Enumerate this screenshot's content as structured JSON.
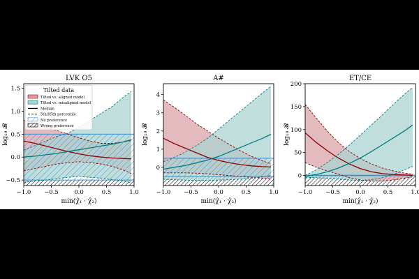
{
  "chart_data": [
    {
      "type": "line",
      "title": "LVK O5",
      "xlabel": "min(χ̂₁ · χ̂₂)",
      "ylabel": "log₁₀ 𝓑",
      "xlim": [
        -1.0,
        1.0
      ],
      "ylim": [
        -0.62,
        1.6
      ],
      "xticks": [
        -1.0,
        -0.5,
        0.0,
        0.5,
        1.0
      ],
      "xtick_labels": [
        "−1.0",
        "−0.5",
        "0.0",
        "0.5",
        "1.0"
      ],
      "yticks": [
        -0.5,
        0.0,
        0.5,
        1.0,
        1.5
      ],
      "ytick_labels": [
        "−0.5",
        "0.0",
        "0.5",
        "1.0",
        "1.5"
      ],
      "no_preference_band": [
        -0.5,
        0.5
      ],
      "wrong_preference_band": [
        -0.62,
        -0.5
      ],
      "x": [
        -1.0,
        -0.8,
        -0.6,
        -0.4,
        -0.2,
        0.0,
        0.2,
        0.4,
        0.6,
        0.8,
        0.95
      ],
      "series": [
        {
          "name": "Tilted vs. aligned model",
          "color": "#8b0000",
          "fill": "#d9a3a8",
          "median": [
            0.35,
            0.3,
            0.24,
            0.18,
            0.12,
            0.07,
            0.03,
            0.0,
            -0.02,
            -0.03,
            -0.04
          ],
          "p5": [
            -0.3,
            -0.25,
            -0.2,
            -0.15,
            -0.12,
            -0.1,
            -0.12,
            -0.15,
            -0.2,
            -0.28,
            -0.36
          ],
          "p95": [
            0.8,
            0.75,
            0.65,
            0.58,
            0.5,
            0.42,
            0.35,
            0.3,
            0.3,
            0.33,
            0.36
          ]
        },
        {
          "name": "Tilted vs. misaligned model",
          "color": "#007c80",
          "fill": "#a9d3d0",
          "median": [
            0.0,
            0.02,
            0.05,
            0.08,
            0.12,
            0.16,
            0.2,
            0.24,
            0.28,
            0.33,
            0.38
          ],
          "p5": [
            -0.55,
            -0.52,
            -0.5,
            -0.47,
            -0.44,
            -0.42,
            -0.44,
            -0.46,
            -0.49,
            -0.52,
            -0.56
          ],
          "p95": [
            0.15,
            0.25,
            0.35,
            0.45,
            0.52,
            0.65,
            0.8,
            0.95,
            1.1,
            1.3,
            1.43
          ]
        }
      ],
      "legend": {
        "position": "upper-left",
        "title": "Tilted data",
        "entries": [
          "Tilted vs. aligned model",
          "Tilted vs. misaligned model",
          "Median",
          "5th/95th percentile",
          "No preference",
          "Wrong preference"
        ]
      }
    },
    {
      "type": "line",
      "title": "A#",
      "xlabel": "min(χ̂₁ · χ̂₂)",
      "ylabel": "log₁₀ 𝓑",
      "xlim": [
        -1.0,
        1.0
      ],
      "ylim": [
        -1.0,
        4.6
      ],
      "xticks": [
        -1.0,
        -0.5,
        0.0,
        0.5,
        1.0
      ],
      "xtick_labels": [
        "−1.0",
        "−0.5",
        "0.0",
        "0.5",
        "1.0"
      ],
      "yticks": [
        0,
        1,
        2,
        3,
        4
      ],
      "ytick_labels": [
        "0",
        "1",
        "2",
        "3",
        "4"
      ],
      "no_preference_band": [
        -0.5,
        0.5
      ],
      "wrong_preference_band": [
        -1.0,
        -0.5
      ],
      "x": [
        -1.0,
        -0.8,
        -0.6,
        -0.4,
        -0.2,
        0.0,
        0.2,
        0.4,
        0.6,
        0.8,
        0.95
      ],
      "series": [
        {
          "name": "Tilted vs. aligned model",
          "color": "#8b0000",
          "fill": "#d9a3a8",
          "median": [
            1.6,
            1.3,
            1.05,
            0.8,
            0.55,
            0.38,
            0.25,
            0.15,
            0.08,
            0.04,
            0.02
          ],
          "p5": [
            -0.3,
            -0.3,
            -0.3,
            -0.32,
            -0.35,
            -0.4,
            -0.45,
            -0.5,
            -0.55,
            -0.6,
            -0.65
          ],
          "p95": [
            3.7,
            3.3,
            2.85,
            2.4,
            2.0,
            1.6,
            1.25,
            0.9,
            0.6,
            0.35,
            0.2
          ]
        },
        {
          "name": "Tilted vs. misaligned model",
          "color": "#007c80",
          "fill": "#a9d3d0",
          "median": [
            -0.1,
            0.0,
            0.1,
            0.25,
            0.4,
            0.6,
            0.85,
            1.1,
            1.35,
            1.6,
            1.82
          ],
          "p5": [
            -0.65,
            -0.68,
            -0.7,
            -0.72,
            -0.72,
            -0.7,
            -0.68,
            -0.65,
            -0.6,
            -0.52,
            -0.45
          ],
          "p95": [
            0.3,
            0.55,
            0.85,
            1.2,
            1.6,
            2.1,
            2.6,
            3.1,
            3.6,
            4.1,
            4.45
          ]
        }
      ]
    },
    {
      "type": "line",
      "title": "ET/CE",
      "xlabel": "min(χ̂₁ · χ̂₂)",
      "ylabel": "log₁₀ 𝓑",
      "xlim": [
        -1.0,
        1.0
      ],
      "ylim": [
        -22,
        200
      ],
      "xticks": [
        -1.0,
        -0.5,
        0.0,
        0.5,
        1.0
      ],
      "xtick_labels": [
        "−1.0",
        "−0.5",
        "0.0",
        "0.5",
        "1.0"
      ],
      "yticks": [
        0,
        50,
        100,
        150,
        200
      ],
      "ytick_labels": [
        "0",
        "50",
        "100",
        "150",
        "200"
      ],
      "no_preference_band": [
        -0.5,
        0.5
      ],
      "wrong_preference_band": [
        -22,
        -0.5
      ],
      "x": [
        -1.0,
        -0.8,
        -0.6,
        -0.4,
        -0.2,
        0.0,
        0.2,
        0.4,
        0.6,
        0.8,
        0.95
      ],
      "series": [
        {
          "name": "Tilted vs. aligned model",
          "color": "#8b0000",
          "fill": "#d9a3a8",
          "median": [
            93,
            72,
            54,
            38,
            25,
            15,
            8,
            4,
            2,
            1,
            0.5
          ],
          "p5": [
            28,
            18,
            10,
            3,
            -5,
            -10,
            -12,
            -12,
            -10,
            -6,
            -3
          ],
          "p95": [
            155,
            125,
            97,
            72,
            52,
            37,
            25,
            16,
            10,
            5,
            3
          ]
        },
        {
          "name": "Tilted vs. misaligned model",
          "color": "#007c80",
          "fill": "#a9d3d0",
          "median": [
            -2,
            2,
            8,
            16,
            26,
            38,
            52,
            67,
            82,
            97,
            110
          ],
          "p5": [
            -4,
            -5,
            -6,
            -8,
            -10,
            -11,
            -9,
            -5,
            2,
            12,
            20
          ],
          "p95": [
            0,
            12,
            28,
            46,
            66,
            88,
            110,
            132,
            155,
            177,
            192
          ]
        }
      ]
    }
  ]
}
